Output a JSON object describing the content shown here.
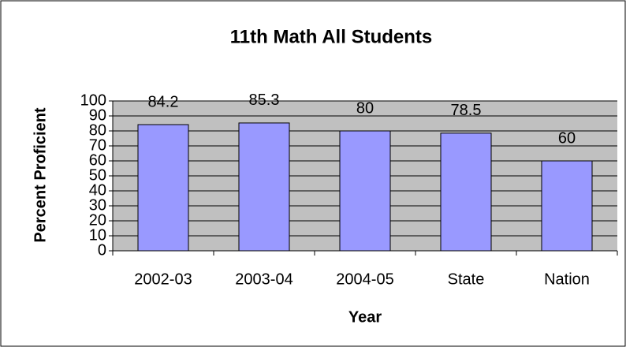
{
  "chart_data": {
    "type": "bar",
    "title": "11th Math All Students",
    "x_label": "Year",
    "y_label": "Percent Proficient",
    "categories": [
      "2002-03",
      "2003-04",
      "2004-05",
      "State",
      "Nation"
    ],
    "values": [
      84.2,
      85.3,
      80,
      78.5,
      60
    ],
    "color": "#9999ff",
    "ylim": [
      0,
      100
    ],
    "yticks": [
      0,
      10,
      20,
      30,
      40,
      50,
      60,
      70,
      80,
      90,
      100
    ],
    "grid": true
  }
}
